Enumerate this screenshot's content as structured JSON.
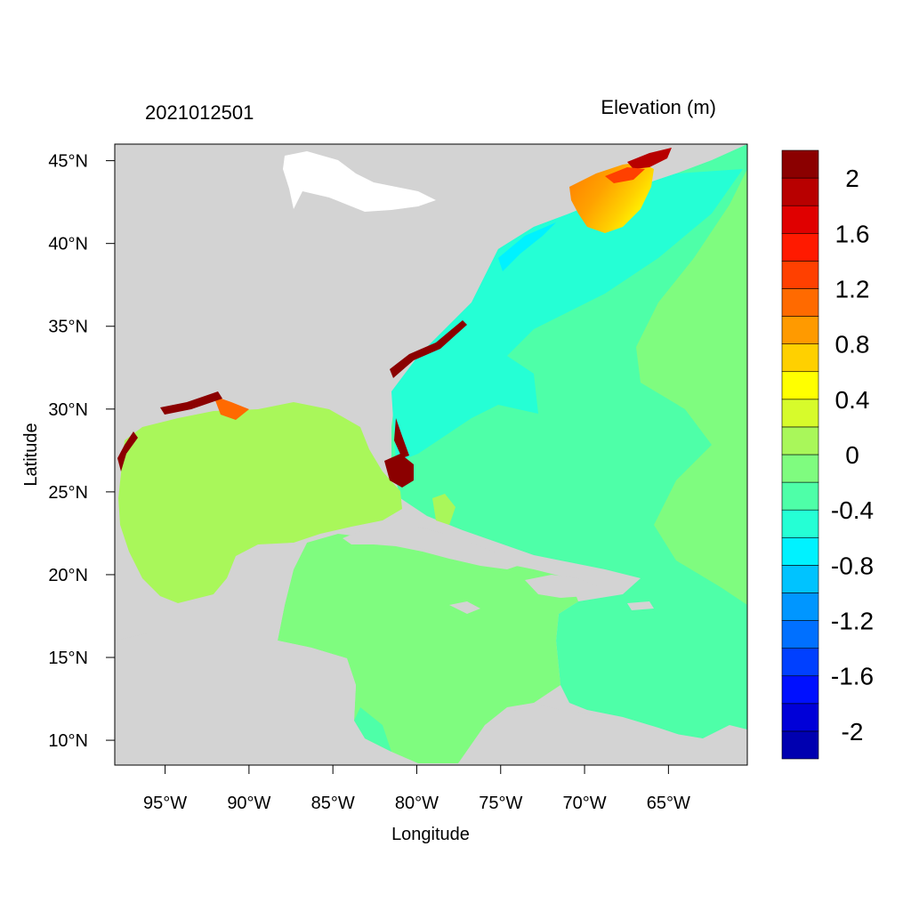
{
  "figure": {
    "left_title": "2021012501",
    "right_title": "Elevation (m)",
    "xlabel": "Longitude",
    "ylabel": "Latitude"
  },
  "colors": {
    "land": "#d3d3d3",
    "background": "#ffffff",
    "gulf": "#a9f75a",
    "caribbean_west": "#7ffc7f",
    "atlantic_main": "#4effa8",
    "shelf": "#25ffd5",
    "cyan_coast": "#00f2ff",
    "maine_orange": "#ff8c00",
    "maine_red": "#8b0000"
  },
  "chart_data": {
    "type": "heatmap",
    "variable": "Elevation",
    "units": "m",
    "x_axis": {
      "label": "Longitude",
      "range_deg": [
        -98.0,
        -60.3
      ],
      "ticks": [
        {
          "value": -95,
          "label": "95°W"
        },
        {
          "value": -90,
          "label": "90°W"
        },
        {
          "value": -85,
          "label": "85°W"
        },
        {
          "value": -80,
          "label": "80°W"
        },
        {
          "value": -75,
          "label": "75°W"
        },
        {
          "value": -70,
          "label": "70°W"
        },
        {
          "value": -65,
          "label": "65°W"
        }
      ]
    },
    "y_axis": {
      "label": "Latitude",
      "range_deg": [
        8.5,
        46.0
      ],
      "ticks": [
        {
          "value": 45,
          "label": "45°N"
        },
        {
          "value": 40,
          "label": "40°N"
        },
        {
          "value": 35,
          "label": "35°N"
        },
        {
          "value": 30,
          "label": "30°N"
        },
        {
          "value": 25,
          "label": "25°N"
        },
        {
          "value": 20,
          "label": "20°N"
        },
        {
          "value": 15,
          "label": "15°N"
        },
        {
          "value": 10,
          "label": "10°N"
        }
      ]
    },
    "colorbar": {
      "levels": [
        -2.2,
        -2.0,
        -1.8,
        -1.6,
        -1.4,
        -1.2,
        -1.0,
        -0.8,
        -0.6,
        -0.4,
        -0.2,
        0.0,
        0.2,
        0.4,
        0.6,
        0.8,
        1.0,
        1.2,
        1.4,
        1.6,
        1.8,
        2.0,
        2.2
      ],
      "colors": [
        "#0000b0",
        "#0000d8",
        "#0010ff",
        "#0040ff",
        "#0070ff",
        "#0096ff",
        "#00c3ff",
        "#00f2ff",
        "#25ffd5",
        "#4effa8",
        "#7ffc7f",
        "#a9f75a",
        "#d7fb2b",
        "#ffff00",
        "#ffd000",
        "#ff9a00",
        "#ff6a00",
        "#ff4000",
        "#ff1a00",
        "#e00000",
        "#b80000",
        "#8b0000"
      ],
      "labels": [
        {
          "value": 2.0,
          "label": "2"
        },
        {
          "value": 1.6,
          "label": "1.6"
        },
        {
          "value": 1.2,
          "label": "1.2"
        },
        {
          "value": 0.8,
          "label": "0.8"
        },
        {
          "value": 0.4,
          "label": "0.4"
        },
        {
          "value": 0.0,
          "label": "0"
        },
        {
          "value": -0.4,
          "label": "-0.4"
        },
        {
          "value": -0.8,
          "label": "-0.8"
        },
        {
          "value": -1.2,
          "label": "-1.2"
        },
        {
          "value": -1.6,
          "label": "-1.6"
        },
        {
          "value": -2.0,
          "label": "-2"
        }
      ]
    }
  }
}
